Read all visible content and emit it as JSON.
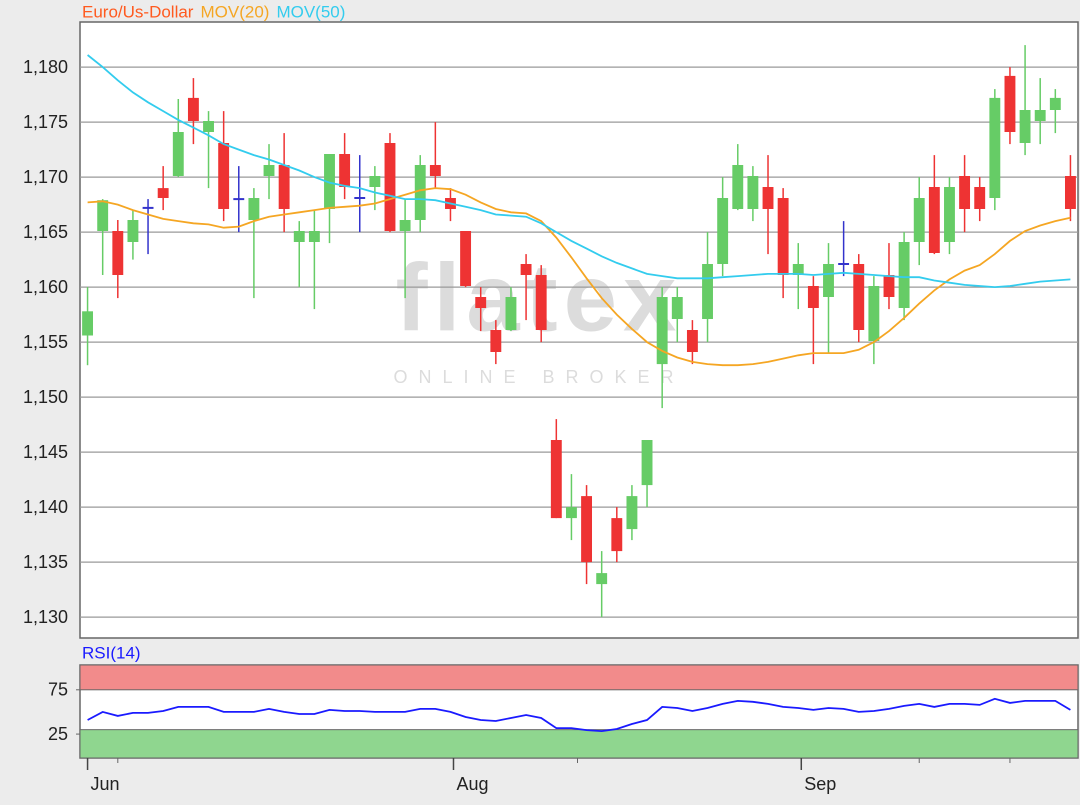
{
  "chart_data": [
    {
      "type": "candlestick",
      "title": "Euro/Us-Dollar",
      "title_color": "#ff5a1f",
      "up_color": "#66cc66",
      "down_color": "#ee3333",
      "doji_color": "#3333cc",
      "xlim": [
        -0.5,
        65.5
      ],
      "ylim": [
        1.1281,
        1.1841
      ],
      "yticks": [
        {
          "value": 1.13,
          "label": "1,130"
        },
        {
          "value": 1.135,
          "label": "1,135"
        },
        {
          "value": 1.14,
          "label": "1,140"
        },
        {
          "value": 1.145,
          "label": "1,145"
        },
        {
          "value": 1.15,
          "label": "1,150"
        },
        {
          "value": 1.155,
          "label": "1,155"
        },
        {
          "value": 1.16,
          "label": "1,160"
        },
        {
          "value": 1.165,
          "label": "1,165"
        },
        {
          "value": 1.17,
          "label": "1,170"
        },
        {
          "value": 1.175,
          "label": "1,175"
        },
        {
          "value": 1.18,
          "label": "1,180"
        }
      ],
      "grid": true,
      "watermark": {
        "logo": "flatex",
        "tagline": "ONLINE BROKER"
      },
      "open": [
        1.1556,
        1.1651,
        1.1651,
        1.1641,
        1.1672,
        1.169,
        1.1701,
        1.1772,
        1.1741,
        1.1731,
        1.168,
        1.1661,
        1.1701,
        1.1711,
        1.1641,
        1.1641,
        1.1671,
        1.1721,
        1.1681,
        1.1691,
        1.1731,
        1.1651,
        1.1661,
        1.1711,
        1.1681,
        1.1651,
        1.1591,
        1.1561,
        1.1561,
        1.1621,
        1.1611,
        1.1461,
        1.139,
        1.141,
        1.133,
        1.139,
        1.138,
        1.142,
        1.153,
        1.1571,
        1.1561,
        1.1571,
        1.1621,
        1.1671,
        1.1671,
        1.1691,
        1.1681,
        1.1611,
        1.1601,
        1.1591,
        1.1621,
        1.1621,
        1.1551,
        1.1611,
        1.1581,
        1.1641,
        1.1691,
        1.1641,
        1.1701,
        1.1691,
        1.1681,
        1.1792,
        1.1731,
        1.1751,
        1.1761,
        1.1701
      ],
      "high": [
        1.16,
        1.168,
        1.1661,
        1.167,
        1.168,
        1.171,
        1.1771,
        1.179,
        1.176,
        1.176,
        1.171,
        1.169,
        1.173,
        1.174,
        1.166,
        1.167,
        1.172,
        1.174,
        1.172,
        1.171,
        1.174,
        1.168,
        1.172,
        1.175,
        1.169,
        1.165,
        1.16,
        1.157,
        1.16,
        1.163,
        1.162,
        1.148,
        1.143,
        1.142,
        1.136,
        1.14,
        1.142,
        1.1461,
        1.16,
        1.16,
        1.157,
        1.165,
        1.17,
        1.173,
        1.171,
        1.172,
        1.169,
        1.164,
        1.161,
        1.164,
        1.166,
        1.163,
        1.161,
        1.164,
        1.165,
        1.17,
        1.172,
        1.17,
        1.172,
        1.17,
        1.178,
        1.18,
        1.182,
        1.179,
        1.178,
        1.172
      ],
      "low": [
        1.1529,
        1.1611,
        1.159,
        1.1625,
        1.163,
        1.167,
        1.17,
        1.173,
        1.169,
        1.166,
        1.165,
        1.159,
        1.168,
        1.165,
        1.16,
        1.158,
        1.164,
        1.168,
        1.165,
        1.167,
        1.165,
        1.159,
        1.165,
        1.169,
        1.166,
        1.16,
        1.156,
        1.153,
        1.156,
        1.157,
        1.155,
        1.139,
        1.137,
        1.133,
        1.13,
        1.135,
        1.137,
        1.14,
        1.149,
        1.155,
        1.153,
        1.155,
        1.161,
        1.167,
        1.166,
        1.163,
        1.159,
        1.158,
        1.153,
        1.154,
        1.161,
        1.155,
        1.153,
        1.158,
        1.157,
        1.162,
        1.163,
        1.163,
        1.165,
        1.166,
        1.167,
        1.173,
        1.172,
        1.173,
        1.174,
        1.166
      ],
      "close": [
        1.1578,
        1.1679,
        1.1611,
        1.1661,
        1.1672,
        1.1681,
        1.1741,
        1.1751,
        1.1751,
        1.1671,
        1.168,
        1.1681,
        1.1711,
        1.1671,
        1.1651,
        1.1651,
        1.1721,
        1.1691,
        1.1681,
        1.1701,
        1.1651,
        1.1661,
        1.1711,
        1.1701,
        1.1671,
        1.1601,
        1.1581,
        1.1541,
        1.1591,
        1.1611,
        1.1561,
        1.139,
        1.14,
        1.135,
        1.134,
        1.136,
        1.141,
        1.1461,
        1.1591,
        1.1591,
        1.1541,
        1.1621,
        1.1681,
        1.1711,
        1.1701,
        1.1671,
        1.1611,
        1.1621,
        1.1581,
        1.1621,
        1.1621,
        1.1561,
        1.1601,
        1.1591,
        1.1641,
        1.1681,
        1.1631,
        1.1691,
        1.1671,
        1.1671,
        1.1772,
        1.1741,
        1.1761,
        1.1761,
        1.1772,
        1.1671
      ],
      "series": [
        {
          "name": "MOV(20)",
          "color": "#f5a623",
          "values": [
            1.1677,
            1.1678,
            1.1675,
            1.167,
            1.1666,
            1.1662,
            1.166,
            1.1658,
            1.1657,
            1.1654,
            1.1655,
            1.166,
            1.1664,
            1.1666,
            1.1668,
            1.167,
            1.1672,
            1.1673,
            1.1674,
            1.1676,
            1.168,
            1.1684,
            1.1688,
            1.169,
            1.1689,
            1.1684,
            1.1677,
            1.1671,
            1.1668,
            1.1667,
            1.166,
            1.1645,
            1.1627,
            1.1608,
            1.159,
            1.1575,
            1.1562,
            1.155,
            1.1542,
            1.1536,
            1.1532,
            1.153,
            1.1529,
            1.1529,
            1.153,
            1.1532,
            1.1535,
            1.1538,
            1.154,
            1.154,
            1.154,
            1.1543,
            1.155,
            1.156,
            1.1572,
            1.1585,
            1.1597,
            1.1607,
            1.1615,
            1.162,
            1.163,
            1.1642,
            1.1651,
            1.1656,
            1.166,
            1.1663
          ]
        },
        {
          "name": "MOV(50)",
          "color": "#33ccee",
          "values": [
            1.1811,
            1.18,
            1.1788,
            1.1777,
            1.1768,
            1.176,
            1.1752,
            1.1745,
            1.1738,
            1.173,
            1.1725,
            1.172,
            1.1716,
            1.1711,
            1.1706,
            1.17,
            1.1695,
            1.1692,
            1.169,
            1.1686,
            1.1683,
            1.168,
            1.168,
            1.1679,
            1.1676,
            1.1673,
            1.167,
            1.1666,
            1.1665,
            1.1664,
            1.1658,
            1.165,
            1.1642,
            1.1635,
            1.1628,
            1.1622,
            1.1617,
            1.1612,
            1.161,
            1.1608,
            1.1608,
            1.1608,
            1.1609,
            1.161,
            1.1611,
            1.1612,
            1.1612,
            1.1612,
            1.1611,
            1.1612,
            1.1613,
            1.1612,
            1.1611,
            1.161,
            1.1609,
            1.1609,
            1.1606,
            1.1604,
            1.1602,
            1.1601,
            1.16,
            1.1601,
            1.1603,
            1.1605,
            1.1606,
            1.1607
          ]
        }
      ]
    },
    {
      "type": "line",
      "xlim": [
        -0.5,
        65.5
      ],
      "ylim": [
        -2,
        103
      ],
      "yticks": [
        25,
        75
      ],
      "xticks": [
        {
          "value": 0,
          "label": "Jun"
        },
        {
          "value": 24.2,
          "label": "Aug"
        },
        {
          "value": 47.2,
          "label": "Sep"
        }
      ],
      "minor_xticks": [
        0,
        2,
        24.2,
        32.4,
        47.2,
        55,
        61
      ],
      "bands": [
        {
          "from": 75,
          "to": 103,
          "color": "#f28b8b"
        },
        {
          "from": -2,
          "to": 30,
          "color": "#8fd68f"
        }
      ],
      "series": [
        {
          "name": "RSI(14)",
          "color": "#1a1aff",
          "values": [
            40.9,
            50.0,
            45.5,
            48.9,
            48.9,
            51.1,
            55.7,
            55.7,
            55.7,
            50.0,
            50.0,
            50.0,
            53.4,
            50.0,
            47.7,
            47.7,
            52.3,
            51.1,
            51.1,
            50.0,
            50.0,
            50.0,
            53.4,
            53.4,
            50.0,
            44.3,
            40.9,
            39.8,
            43.2,
            46.6,
            43.2,
            31.8,
            31.8,
            29.5,
            28.4,
            30.7,
            36.4,
            40.9,
            55.7,
            54.5,
            51.1,
            54.5,
            59.1,
            62.5,
            61.4,
            59.1,
            55.7,
            54.5,
            52.3,
            54.5,
            53.4,
            50.0,
            51.1,
            53.4,
            56.8,
            59.1,
            55.7,
            59.1,
            59.1,
            58.0,
            64.8,
            60.2,
            62.5,
            62.5,
            62.5,
            52.3
          ]
        }
      ]
    }
  ]
}
